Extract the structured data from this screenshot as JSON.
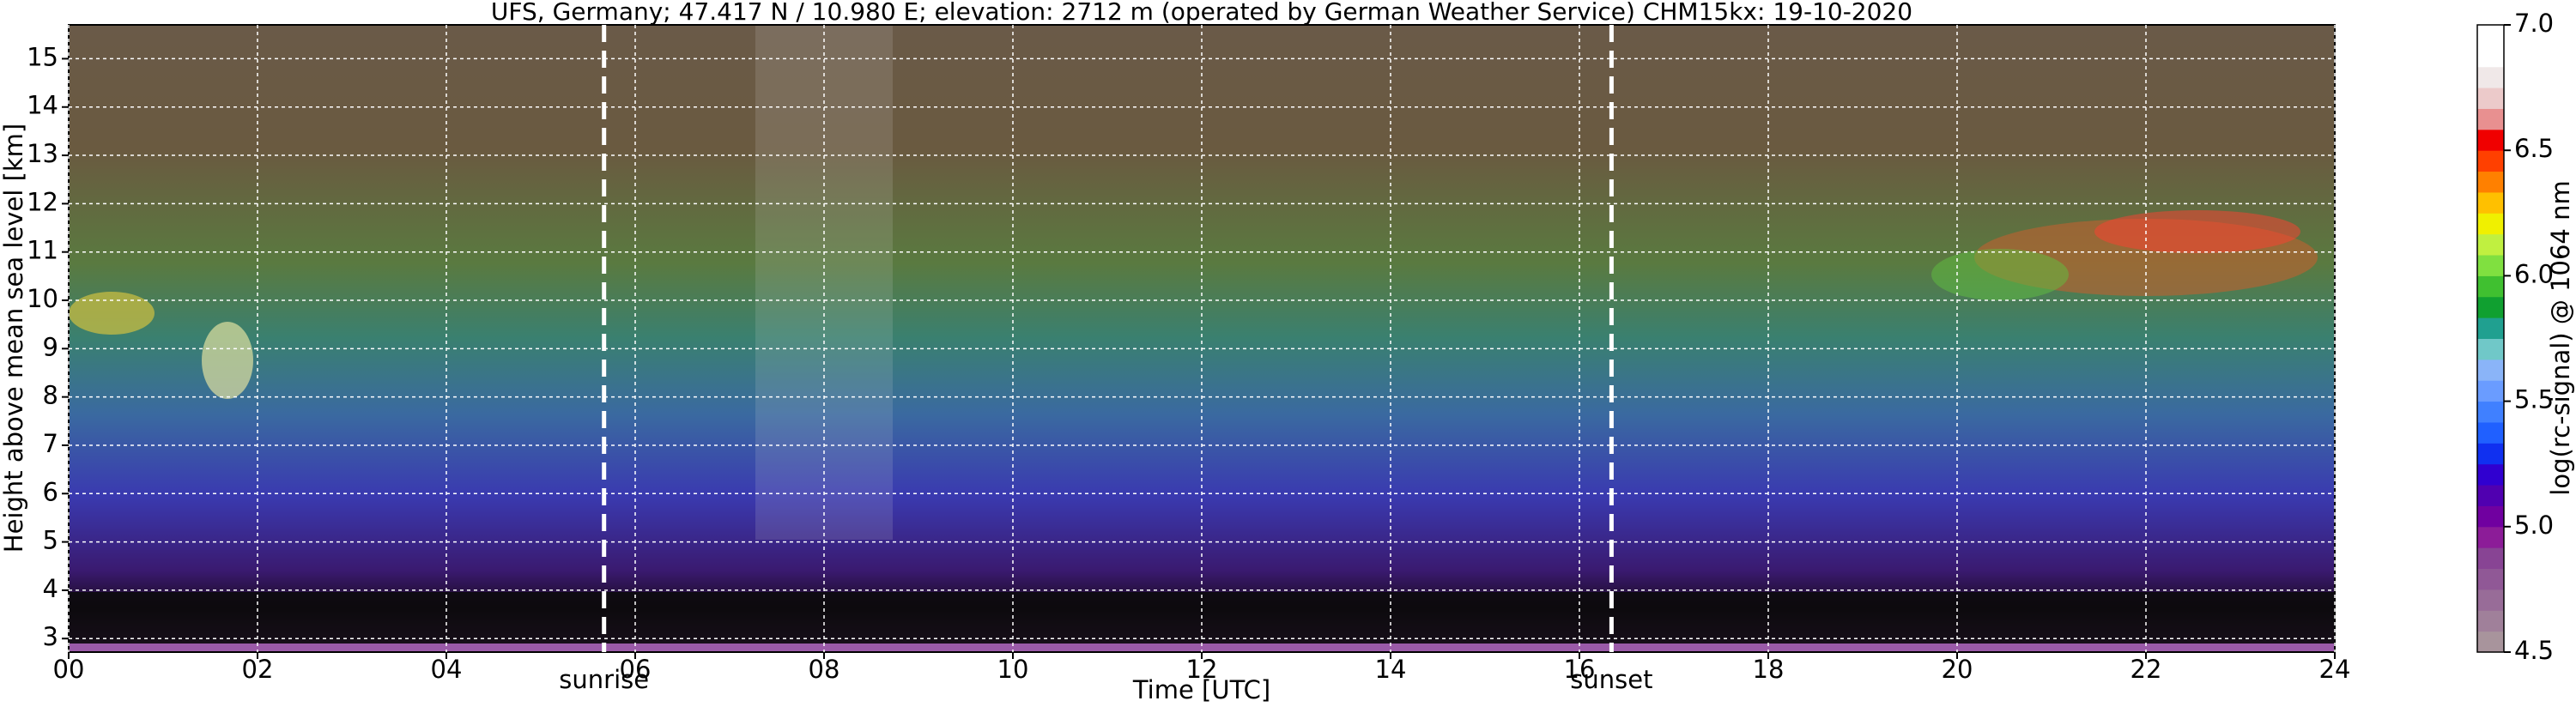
{
  "chart_data": {
    "type": "heatmap",
    "title": "UFS, Germany; 47.417 N / 10.980 E; elevation: 2712 m  (operated by German Weather Service)    CHM15kx: 19-10-2020",
    "x_label": "Time [UTC]",
    "y_label": "Height above mean sea level [km]",
    "xlim": [
      0,
      24
    ],
    "xticks": [
      {
        "value": 0,
        "label": "00"
      },
      {
        "value": 2,
        "label": "02"
      },
      {
        "value": 4,
        "label": "04"
      },
      {
        "value": 6,
        "label": "06"
      },
      {
        "value": 8,
        "label": "08"
      },
      {
        "value": 10,
        "label": "10"
      },
      {
        "value": 12,
        "label": "12"
      },
      {
        "value": 14,
        "label": "14"
      },
      {
        "value": 16,
        "label": "16"
      },
      {
        "value": 18,
        "label": "18"
      },
      {
        "value": 20,
        "label": "20"
      },
      {
        "value": 22,
        "label": "22"
      },
      {
        "value": 24,
        "label": "24"
      }
    ],
    "ylim": [
      2.72,
      15.7
    ],
    "yticks": [
      3,
      4,
      5,
      6,
      7,
      8,
      9,
      10,
      11,
      12,
      13,
      14,
      15
    ],
    "grid": true,
    "annotations": [
      {
        "text": "sunrise",
        "x": 5.67
      },
      {
        "text": "sunset",
        "x": 16.34
      }
    ],
    "colorbar": {
      "label": "log(rc-signal) @ 1064 nm",
      "lim": [
        4.5,
        7.0
      ],
      "ticks": [
        {
          "value": 4.5,
          "label": "4.5"
        },
        {
          "value": 5.0,
          "label": "5.0"
        },
        {
          "value": 5.5,
          "label": "5.5"
        },
        {
          "value": 6.0,
          "label": "6.0"
        },
        {
          "value": 6.5,
          "label": "6.5"
        },
        {
          "value": 7.0,
          "label": "7.0"
        }
      ],
      "colors": [
        "#a8949c",
        "#a0809a",
        "#986c98",
        "#905896",
        "#884494",
        "#8c1c98",
        "#7000a0",
        "#5000b0",
        "#3000d0",
        "#1030f0",
        "#2060ff",
        "#4080ff",
        "#6a9cff",
        "#8ab4f8",
        "#70c8c8",
        "#20a090",
        "#10a030",
        "#40c030",
        "#80e040",
        "#c0f040",
        "#f0f000",
        "#ffc000",
        "#ff8000",
        "#ff4000",
        "#f00000",
        "#e89090",
        "#eccaca",
        "#f0e8e8",
        "#ffffff",
        "#ffffff"
      ]
    }
  }
}
